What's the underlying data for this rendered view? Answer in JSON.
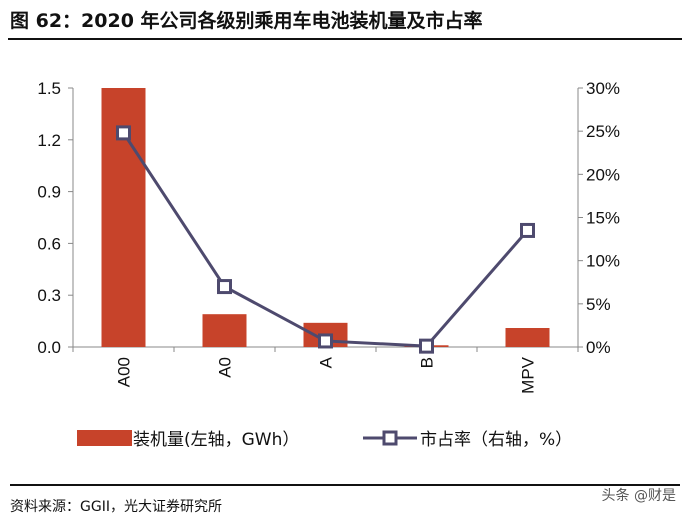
{
  "title": "图 62：2020 年公司各级别乘用车电池装机量及市占率",
  "source": "资料来源：GGII，光大证券研究所",
  "watermark": "头条 @财是",
  "chart_data": {
    "type": "bar+line",
    "categories": [
      "A00",
      "A0",
      "A",
      "B",
      "MPV"
    ],
    "series": [
      {
        "name": "装机量(左轴，GWh）",
        "type": "bar",
        "axis": "left",
        "color": "#C7432A",
        "values": [
          1.5,
          0.19,
          0.14,
          0.01,
          0.11
        ]
      },
      {
        "name": "市占率（右轴，%）",
        "type": "line",
        "axis": "right",
        "color": "#4E4A6E",
        "values": [
          24.8,
          7.0,
          0.7,
          0.1,
          13.5
        ]
      }
    ],
    "left_axis": {
      "ylim": [
        0,
        1.5
      ],
      "ticks": [
        "0.0",
        "0.3",
        "0.6",
        "0.9",
        "1.2",
        "1.5"
      ]
    },
    "right_axis": {
      "ylim": [
        0,
        30
      ],
      "ticks": [
        "0%",
        "5%",
        "10%",
        "15%",
        "20%",
        "25%",
        "30%"
      ]
    },
    "legend": {
      "placement": "bottom",
      "labels": [
        "装机量(左轴，GWh）",
        "市占率（右轴，%）"
      ]
    },
    "grid": false
  }
}
